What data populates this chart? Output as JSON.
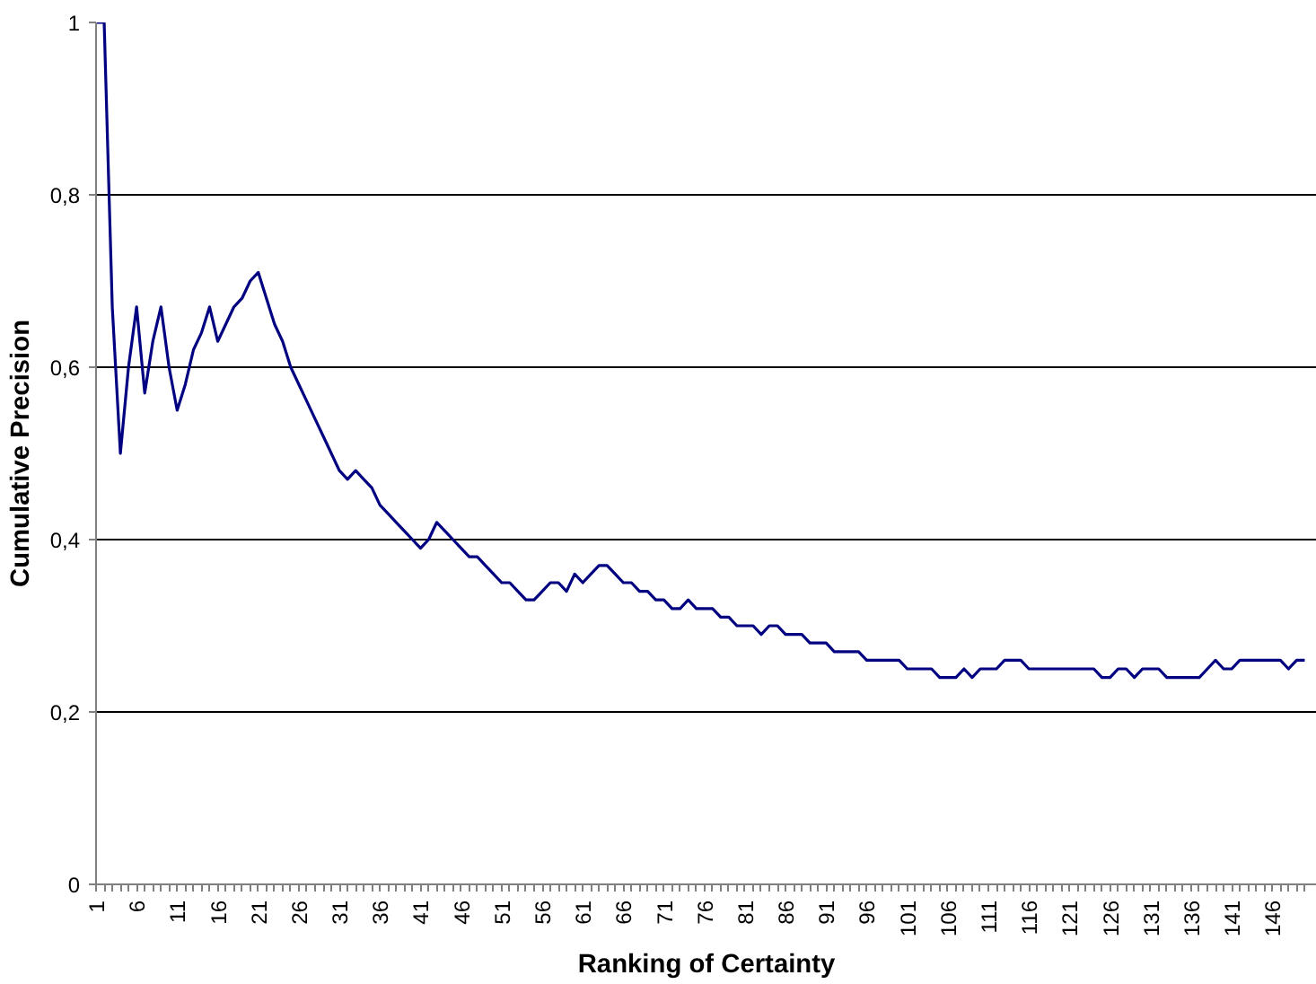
{
  "chart_data": {
    "type": "line",
    "xlabel": "Ranking of Certainty",
    "ylabel": "Cumulative Precision",
    "categories": [
      "1",
      null,
      null,
      null,
      null,
      "6",
      null,
      null,
      null,
      null,
      "11",
      null,
      null,
      null,
      null,
      "16",
      null,
      null,
      null,
      null,
      "21",
      null,
      null,
      null,
      null,
      "26",
      null,
      null,
      null,
      null,
      "31",
      null,
      null,
      null,
      null,
      "36",
      null,
      null,
      null,
      null,
      "41",
      null,
      null,
      null,
      null,
      "46",
      null,
      null,
      null,
      null,
      "51",
      null,
      null,
      null,
      null,
      "56",
      null,
      null,
      null,
      null,
      "61",
      null,
      null,
      null,
      null,
      "66",
      null,
      null,
      null,
      null,
      "71",
      null,
      null,
      null,
      null,
      "76",
      null,
      null,
      null,
      null,
      "81",
      null,
      null,
      null,
      null,
      "86",
      null,
      null,
      null,
      null,
      "91",
      null,
      null,
      null,
      null,
      "96",
      null,
      null,
      null,
      null,
      "101",
      null,
      null,
      null,
      null,
      "106",
      null,
      null,
      null,
      null,
      "111",
      null,
      null,
      null,
      null,
      "116",
      null,
      null,
      null,
      null,
      "121",
      null,
      null,
      null,
      null,
      "126",
      null,
      null,
      null,
      null,
      "131",
      null,
      null,
      null,
      null,
      "136",
      null,
      null,
      null,
      null,
      "141",
      null,
      null,
      null,
      null,
      "146",
      null,
      null,
      null,
      null
    ],
    "series": [
      {
        "color": "#000080",
        "values": [
          1,
          1,
          0.67,
          0.5,
          0.6,
          0.67,
          0.57,
          0.63,
          0.67,
          0.6,
          0.55,
          0.58,
          0.62,
          0.64,
          0.67,
          0.63,
          0.65,
          0.67,
          0.68,
          0.7,
          0.71,
          0.68,
          0.65,
          0.63,
          0.6,
          0.58,
          0.56,
          0.54,
          0.52,
          0.5,
          0.48,
          0.47,
          0.48,
          0.47,
          0.46,
          0.44,
          0.43,
          0.42,
          0.41,
          0.4,
          0.39,
          0.4,
          0.42,
          0.41,
          0.4,
          0.39,
          0.38,
          0.38,
          0.37,
          0.36,
          0.35,
          0.35,
          0.34,
          0.33,
          0.33,
          0.34,
          0.35,
          0.35,
          0.34,
          0.36,
          0.35,
          0.36,
          0.37,
          0.37,
          0.36,
          0.35,
          0.35,
          0.34,
          0.34,
          0.33,
          0.33,
          0.32,
          0.32,
          0.33,
          0.32,
          0.32,
          0.32,
          0.31,
          0.31,
          0.3,
          0.3,
          0.3,
          0.29,
          0.3,
          0.3,
          0.29,
          0.29,
          0.29,
          0.28,
          0.28,
          0.28,
          0.27,
          0.27,
          0.27,
          0.27,
          0.26,
          0.26,
          0.26,
          0.26,
          0.26,
          0.25,
          0.25,
          0.25,
          0.25,
          0.24,
          0.24,
          0.24,
          0.25,
          0.24,
          0.25,
          0.25,
          0.25,
          0.26,
          0.26,
          0.26,
          0.25,
          0.25,
          0.25,
          0.25,
          0.25,
          0.25,
          0.25,
          0.25,
          0.25,
          0.24,
          0.24,
          0.25,
          0.25,
          0.24,
          0.25,
          0.25,
          0.25,
          0.24,
          0.24,
          0.24,
          0.24,
          0.24,
          0.25,
          0.26,
          0.25,
          0.25,
          0.26,
          0.26,
          0.26,
          0.26,
          0.26,
          0.26,
          0.25,
          0.26,
          0.26
        ]
      }
    ],
    "ylim": [
      0,
      1
    ],
    "yticks": [
      0,
      {
        "value": 0.2,
        "label": "0,2"
      },
      {
        "value": 0.4,
        "label": "0,4"
      },
      {
        "value": 0.6,
        "label": "0,6"
      },
      {
        "value": 0.8,
        "label": "0,8"
      },
      1
    ],
    "grid": "y",
    "marker": "none",
    "line_style": "solid"
  }
}
